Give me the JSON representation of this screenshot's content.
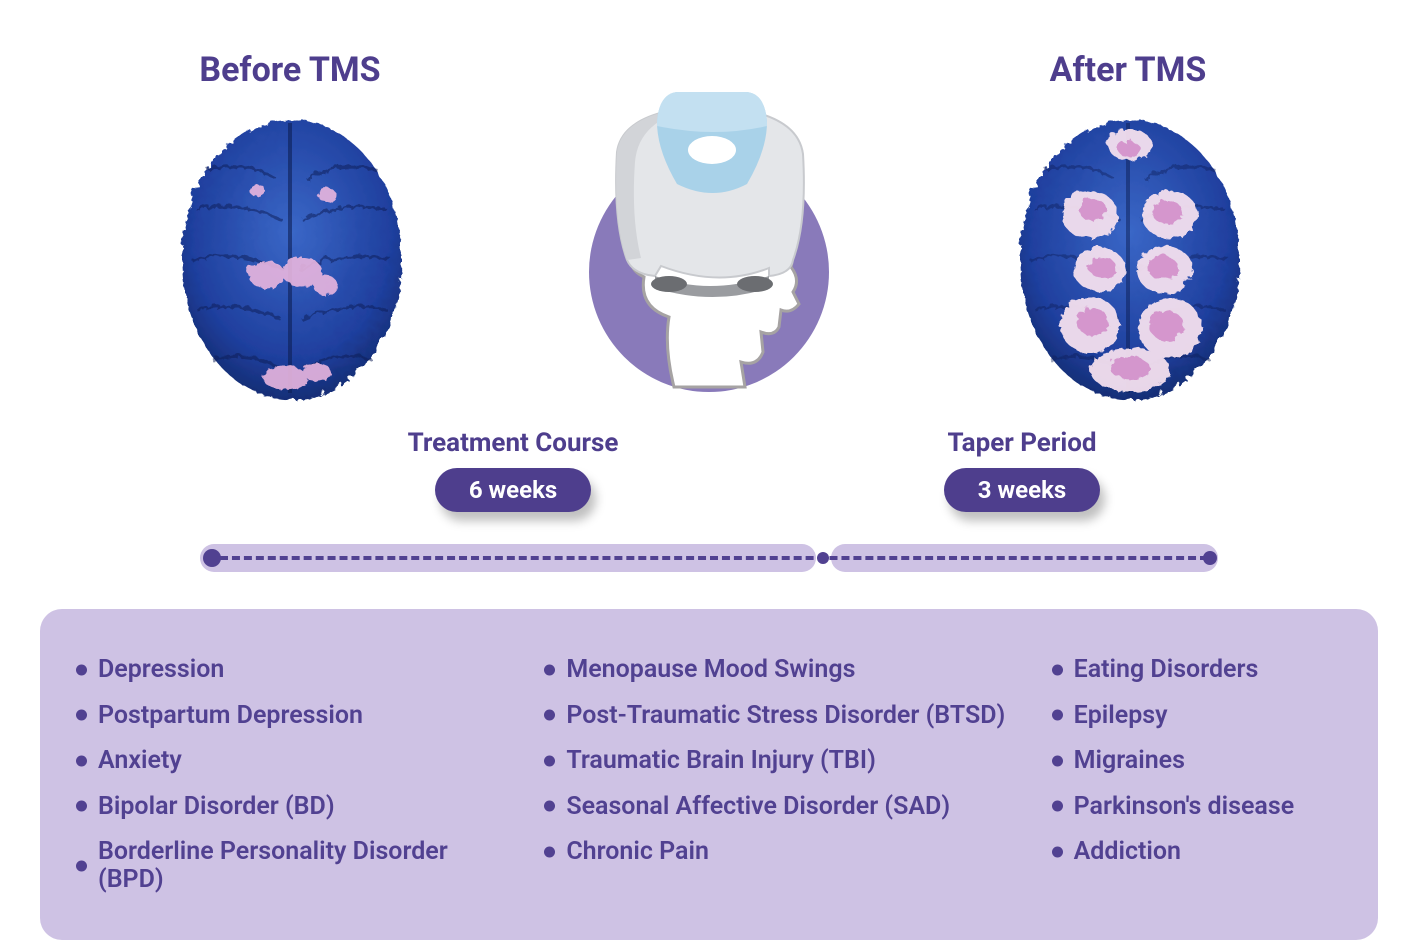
{
  "colors": {
    "heading": "#4e3e8d",
    "pill_bg": "#4e3e8d",
    "pill_text": "#ffffff",
    "timeline_bar": "#cec2e4",
    "timeline_dash": "#514191",
    "timeline_dot": "#514191",
    "device_circle": "#897aba",
    "conditions_bg": "#cec2e4",
    "condition_text": "#514191",
    "bullet": "#514191",
    "brain_outer": "#2856b5",
    "brain_inner_dark": "#1a3796",
    "brain_highlight": "#e9b6df",
    "brain_pink": "#d18cc9",
    "device_body": "#dfe1e4",
    "device_body_dark": "#b9bbbf",
    "device_top": "#a9d2e9",
    "head_outline": "#a6a3a3"
  },
  "before_label": "Before TMS",
  "after_label": "After TMS",
  "timeline": {
    "phase1_title": "Treatment Course",
    "phase1_duration": "6 weeks",
    "phase1_fraction": 0.615,
    "phase2_title": "Taper Period",
    "phase2_duration": "3 weeks",
    "phase2_fraction": 0.385
  },
  "brain_before_activity_level": "low",
  "brain_after_activity_level": "high",
  "conditions": {
    "col1": [
      "Depression",
      "Postpartum Depression",
      "Anxiety",
      "Bipolar Disorder (BD)",
      "Borderline Personality Disorder (BPD)"
    ],
    "col2": [
      "Menopause Mood Swings",
      "Post-Traumatic Stress Disorder (BTSD)",
      "Traumatic Brain Injury (TBI)",
      "Seasonal Affective Disorder (SAD)",
      "Chronic Pain"
    ],
    "col3": [
      "Eating Disorders",
      "Epilepsy",
      "Migraines",
      "Parkinson's disease",
      "Addiction"
    ]
  }
}
